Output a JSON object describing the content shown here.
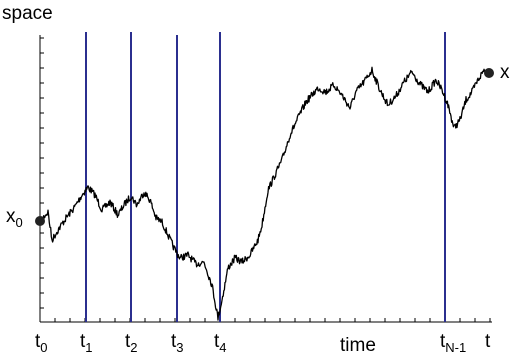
{
  "diagram": {
    "y_axis_label": "space",
    "x_axis_label": "time",
    "start_label": {
      "base": "x",
      "sub": "0"
    },
    "end_label": {
      "base": "x",
      "sub": ""
    },
    "time_labels": [
      {
        "base": "t",
        "sub": "0"
      },
      {
        "base": "t",
        "sub": "1"
      },
      {
        "base": "t",
        "sub": "2"
      },
      {
        "base": "t",
        "sub": "3"
      },
      {
        "base": "t",
        "sub": "4"
      },
      {
        "base": "t",
        "sub": "N-1"
      },
      {
        "base": "t",
        "sub": ""
      }
    ],
    "colors": {
      "slice_line": "#2b2f8f",
      "path": "#000000",
      "endpoint": "#222222"
    }
  }
}
